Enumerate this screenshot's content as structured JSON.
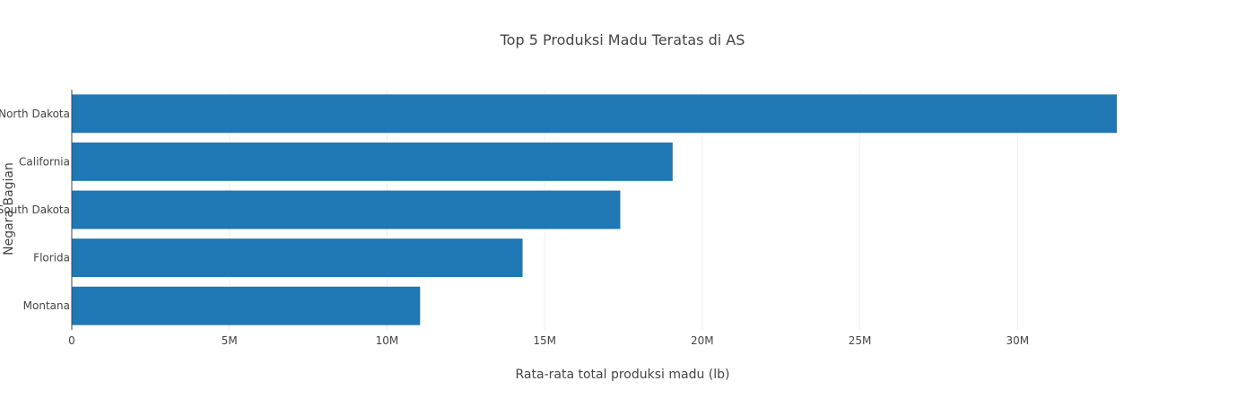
{
  "chart_data": {
    "type": "bar",
    "orientation": "horizontal",
    "title": "Top 5 Produksi Madu Teratas di AS",
    "xlabel": "Rata-rata total produksi madu (lb)",
    "ylabel": "Negara Bagian",
    "categories": [
      "North Dakota",
      "California",
      "South Dakota",
      "Florida",
      "Montana"
    ],
    "values": [
      33150000,
      19060000,
      17400000,
      14300000,
      11050000
    ],
    "xlim": [
      0,
      35000000
    ],
    "xticks": [
      0,
      5000000,
      10000000,
      15000000,
      20000000,
      25000000,
      30000000
    ],
    "xtick_labels": [
      "0",
      "5M",
      "10M",
      "15M",
      "20M",
      "25M",
      "30M"
    ],
    "bar_color": "#1f77b4",
    "grid": true,
    "legend": "none"
  }
}
